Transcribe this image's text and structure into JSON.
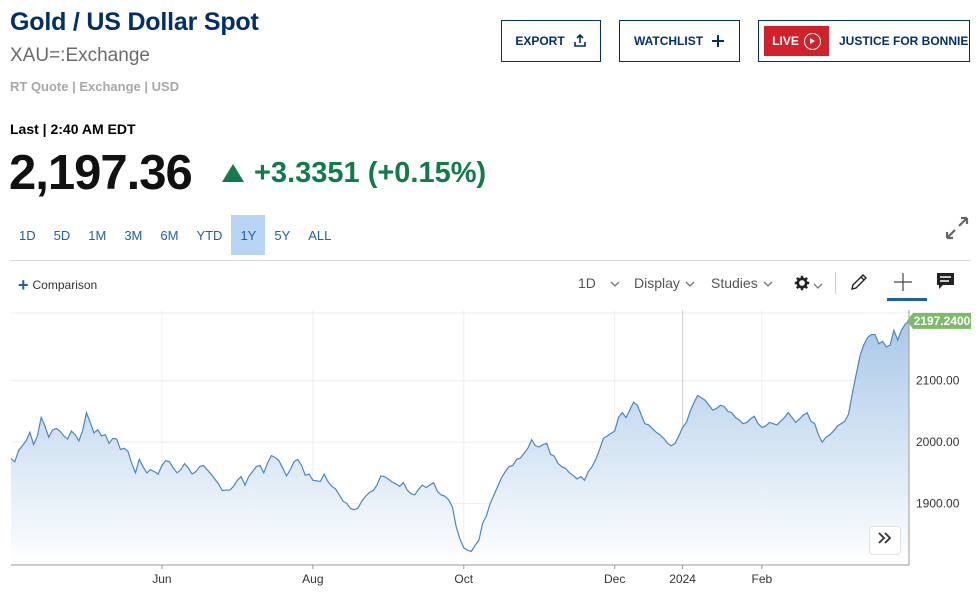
{
  "header": {
    "title": "Gold / US Dollar Spot",
    "symbol": "XAU=:Exchange",
    "quote_info": "RT Quote | Exchange | USD"
  },
  "buttons": {
    "export": "EXPORT",
    "watchlist": "WATCHLIST",
    "live_badge": "LIVE",
    "live_title": "JUSTICE FOR BONNIE"
  },
  "quote": {
    "last_label": "Last | 2:40 AM EDT",
    "price": "2,197.36",
    "change": "+3.3351 (+0.15%)",
    "direction": "up",
    "up_color": "#127b4b"
  },
  "ranges": [
    "1D",
    "5D",
    "1M",
    "3M",
    "6M",
    "YTD",
    "1Y",
    "5Y",
    "ALL"
  ],
  "active_range": "1Y",
  "toolbar": {
    "comparison": "Comparison",
    "interval": "1D",
    "display": "Display",
    "studies": "Studies",
    "icons": [
      "gear-icon",
      "pencil-icon",
      "crosshair-icon",
      "comment-icon"
    ]
  },
  "chart_data": {
    "type": "area",
    "series": [
      {
        "values": [
          1973,
          1968,
          1986,
          1994,
          2002,
          2016,
          1996,
          2010,
          2040,
          2026,
          2008,
          2020,
          2022,
          2018,
          2010,
          2005,
          2018,
          2012,
          2002,
          2019,
          2048,
          2032,
          2015,
          2020,
          2010,
          2012,
          1998,
          2006,
          2005,
          1988,
          1990,
          1985,
          1965,
          1950,
          1972,
          1960,
          1950,
          1955,
          1952,
          1948,
          1962,
          1970,
          1968,
          1958,
          1950,
          1955,
          1965,
          1958,
          1948,
          1952,
          1960,
          1962,
          1955,
          1948,
          1940,
          1932,
          1921,
          1922,
          1922,
          1928,
          1938,
          1944,
          1930,
          1944,
          1952,
          1960,
          1962,
          1950,
          1966,
          1978,
          1975,
          1970,
          1958,
          1945,
          1955,
          1968,
          1972,
          1962,
          1946,
          1948,
          1938,
          1937,
          1936,
          1948,
          1936,
          1928,
          1924,
          1914,
          1904,
          1900,
          1892,
          1890,
          1893,
          1904,
          1912,
          1918,
          1921,
          1930,
          1945,
          1944,
          1940,
          1935,
          1932,
          1928,
          1934,
          1922,
          1916,
          1914,
          1923,
          1930,
          1926,
          1930,
          1934,
          1920,
          1914,
          1912,
          1906,
          1894,
          1862,
          1842,
          1828,
          1824,
          1822,
          1832,
          1840,
          1868,
          1880,
          1900,
          1914,
          1928,
          1942,
          1952,
          1960,
          1962,
          1972,
          1974,
          1982,
          1990,
          2004,
          1994,
          1992,
          1996,
          1998,
          1980,
          1977,
          1965,
          1960,
          1957,
          1950,
          1946,
          1940,
          1944,
          1938,
          1952,
          1960,
          1972,
          1988,
          2006,
          2010,
          2014,
          2018,
          2040,
          2048,
          2040,
          2052,
          2065,
          2060,
          2045,
          2030,
          2028,
          2022,
          2016,
          2012,
          2006,
          1998,
          1994,
          1998,
          2010,
          2024,
          2032,
          2050,
          2064,
          2076,
          2072,
          2068,
          2060,
          2052,
          2055,
          2060,
          2058,
          2050,
          2048,
          2040,
          2036,
          2030,
          2032,
          2038,
          2042,
          2030,
          2024,
          2026,
          2032,
          2030,
          2028,
          2034,
          2040,
          2048,
          2040,
          2032,
          2038,
          2044,
          2048,
          2034,
          2030,
          2012,
          2000,
          2008,
          2012,
          2018,
          2026,
          2030,
          2034,
          2046,
          2080,
          2110,
          2140,
          2158,
          2170,
          2175,
          2175,
          2160,
          2164,
          2155,
          2158,
          2182,
          2166,
          2182,
          2192,
          2197.24
        ]
      }
    ],
    "x_ticks": [
      "Jun",
      "Aug",
      "Oct",
      "Dec",
      "2024",
      "Feb"
    ],
    "x_tick_index": [
      40,
      80,
      120,
      160,
      178,
      199
    ],
    "y_ticks": [
      1900,
      2000,
      2100
    ],
    "y_tick_labels": [
      "1900.00",
      "2000.00",
      "2100.00"
    ],
    "ylim": [
      1800,
      2215
    ],
    "last_value_label": "2197.2400",
    "grid": true,
    "line_color": "#4a86c5",
    "fill_color_top": "#a9c8e8",
    "fill_color_bottom": "#ffffff",
    "last_label_color": "#7dbb6a"
  }
}
